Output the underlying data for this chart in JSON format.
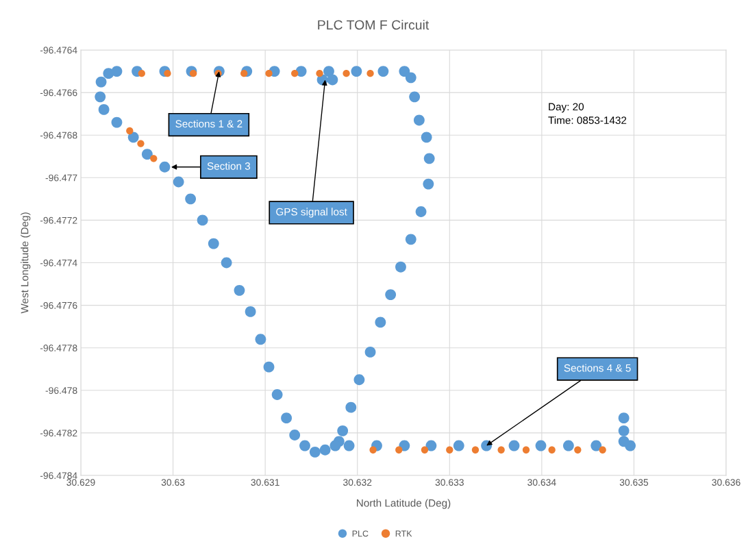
{
  "chart_data": {
    "type": "scatter",
    "title": "PLC TOM F Circuit",
    "xlabel": "North Latitude (Deg)",
    "ylabel": "West Longitude (Deg)",
    "xlim": [
      30.629,
      30.636
    ],
    "xticks": [
      30.629,
      30.63,
      30.631,
      30.632,
      30.633,
      30.634,
      30.635,
      30.636
    ],
    "ylim": [
      -96.4784,
      -96.4764
    ],
    "yticks": [
      -96.4784,
      -96.4782,
      -96.478,
      -96.4778,
      -96.4776,
      -96.4774,
      -96.4772,
      -96.477,
      -96.4768,
      -96.4766,
      -96.4764
    ],
    "grid": true,
    "legend": "bottom",
    "marker": "circle",
    "series": [
      {
        "name": "PLC",
        "color": "#5b9bd5",
        "x": [
          30.62939,
          30.62961,
          30.62991,
          30.6302,
          30.6305,
          30.6308,
          30.6311,
          30.63139,
          30.63169,
          30.63199,
          30.63228,
          30.63251,
          30.63162,
          30.63173,
          30.63258,
          30.63262,
          30.63267,
          30.63275,
          30.63278,
          30.63277,
          30.63269,
          30.63258,
          30.63247,
          30.63236,
          30.63225,
          30.63214,
          30.63202,
          30.63193,
          30.63184,
          30.6318,
          30.63176,
          30.63165,
          30.63154,
          30.63143,
          30.63132,
          30.63123,
          30.63113,
          30.63104,
          30.63095,
          30.63084,
          30.63072,
          30.63058,
          30.63044,
          30.63032,
          30.63019,
          30.63006,
          30.62991,
          30.62972,
          30.62957,
          30.62939,
          30.62925,
          30.62921,
          30.62922,
          30.6293,
          30.63191,
          30.63221,
          30.63251,
          30.6328,
          30.6331,
          30.6334,
          30.6337,
          30.63399,
          30.63429,
          30.63459,
          30.63496,
          30.63489,
          30.63489,
          30.63489
        ],
        "values": [
          -96.4765,
          -96.4765,
          -96.4765,
          -96.4765,
          -96.4765,
          -96.4765,
          -96.4765,
          -96.4765,
          -96.4765,
          -96.4765,
          -96.4765,
          -96.4765,
          -96.47654,
          -96.47654,
          -96.47653,
          -96.47662,
          -96.47673,
          -96.47681,
          -96.47691,
          -96.47703,
          -96.47716,
          -96.47729,
          -96.47742,
          -96.47755,
          -96.47768,
          -96.47782,
          -96.47795,
          -96.47808,
          -96.47819,
          -96.47824,
          -96.47826,
          -96.47828,
          -96.47829,
          -96.47826,
          -96.47821,
          -96.47813,
          -96.47802,
          -96.47789,
          -96.47776,
          -96.47763,
          -96.47753,
          -96.4774,
          -96.47731,
          -96.4772,
          -96.4771,
          -96.47702,
          -96.47695,
          -96.47689,
          -96.47681,
          -96.47674,
          -96.47668,
          -96.47662,
          -96.47655,
          -96.47651,
          -96.47826,
          -96.47826,
          -96.47826,
          -96.47826,
          -96.47826,
          -96.47826,
          -96.47826,
          -96.47826,
          -96.47826,
          -96.47826,
          -96.47826,
          -96.47813,
          -96.47819,
          -96.47824
        ]
      },
      {
        "name": "RTK",
        "color": "#ed7d31",
        "x": [
          30.62966,
          30.62994,
          30.63022,
          30.63049,
          30.63077,
          30.63104,
          30.63132,
          30.63159,
          30.63188,
          30.63214,
          30.62953,
          30.62965,
          30.62979,
          30.63217,
          30.63245,
          30.63273,
          30.633,
          30.63328,
          30.63356,
          30.63383,
          30.63411,
          30.63439,
          30.63466
        ],
        "values": [
          -96.47651,
          -96.47651,
          -96.47651,
          -96.47651,
          -96.47651,
          -96.47651,
          -96.47651,
          -96.47651,
          -96.47651,
          -96.47651,
          -96.47678,
          -96.47684,
          -96.47691,
          -96.47828,
          -96.47828,
          -96.47828,
          -96.47828,
          -96.47828,
          -96.47828,
          -96.47828,
          -96.47828,
          -96.47828,
          -96.47828
        ]
      }
    ],
    "annotations": [
      {
        "text": "Sections 1 & 2",
        "x": 30.6305,
        "y": -96.4765
      },
      {
        "text": "Section 3",
        "x": 30.62998,
        "y": -96.47695
      },
      {
        "text": "GPS signal lost",
        "x": 30.63165,
        "y": -96.47654
      },
      {
        "text": "Sections 4 & 5",
        "x": 30.6334,
        "y": -96.47826
      },
      "Day: 20\nTime: 0853-1432"
    ]
  }
}
